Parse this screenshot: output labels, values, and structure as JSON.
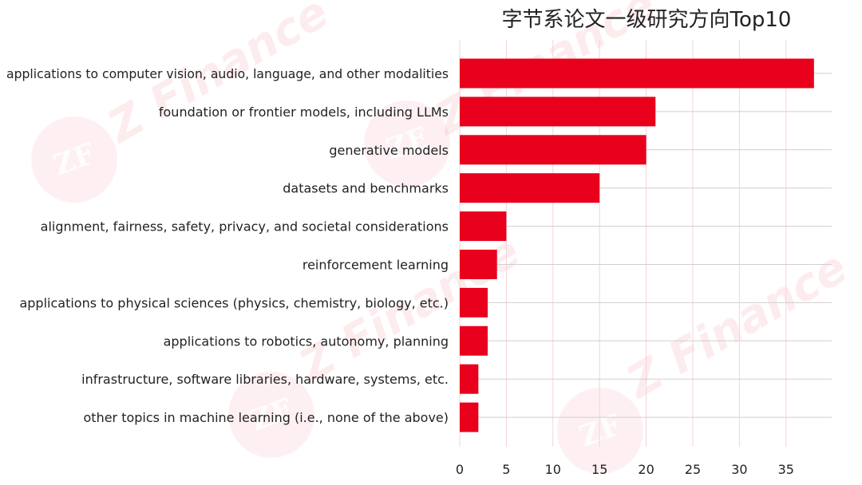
{
  "chart_data": {
    "type": "bar",
    "orientation": "horizontal",
    "title": "字节系论文一级研究方向Top10",
    "xlabel": "",
    "ylabel": "",
    "categories": [
      "applications to computer vision, audio, language, and other modalities",
      "foundation or frontier models, including LLMs",
      "generative models",
      "datasets and benchmarks",
      "alignment, fairness, safety, privacy, and societal considerations",
      "reinforcement learning",
      "applications to physical sciences (physics, chemistry, biology, etc.)",
      "applications to robotics, autonomy, planning",
      "infrastructure, software libraries, hardware, systems, etc.",
      "other topics in machine learning (i.e., none of the above)"
    ],
    "values": [
      38,
      21,
      20,
      15,
      5,
      4,
      3,
      3,
      2,
      2
    ],
    "xlim": [
      0,
      40
    ],
    "xticks": [
      0,
      5,
      10,
      15,
      20,
      25,
      30,
      35
    ],
    "xtick_labels": [
      "0",
      "5",
      "10",
      "15",
      "20",
      "25",
      "30",
      "35"
    ],
    "grid": true,
    "bar_color": "#e8001c",
    "vertical_grid_color": "#f3d3da",
    "horizontal_grid_color": "#cfcfcf"
  },
  "watermark": {
    "text": "Z Finance",
    "logo_text": "ZF",
    "color": "#e8001c"
  }
}
